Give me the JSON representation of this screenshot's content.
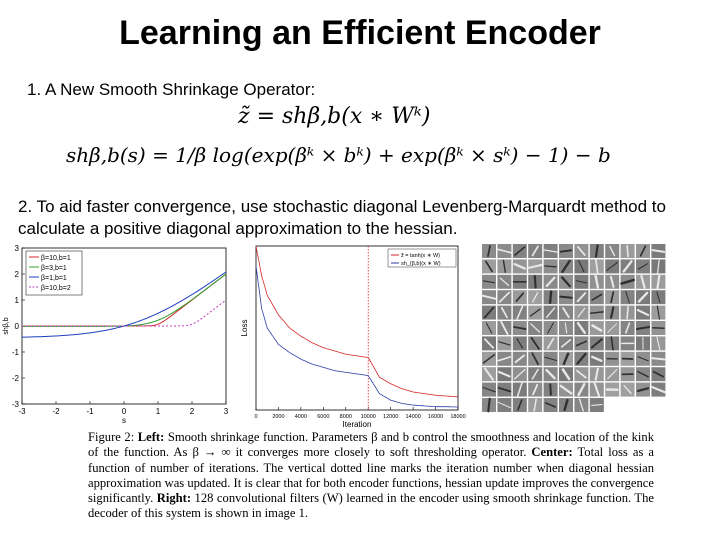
{
  "slide": {
    "title": "Learning an Efficient Encoder",
    "point1": "1. A New Smooth Shrinkage Operator:",
    "equation1": "z̃ = sh_{β,b}(x ∗ W^k)",
    "equation1_display": "z̃ = shβ,b(x ∗ Wᵏ)",
    "equation2": "sh_{β,b}(s) = 1/β log(exp(β^k × b^k) + exp(β^k × s^k) − 1) − b",
    "equation2_display": "shβ,b(s) = 1/β log(exp(βᵏ × bᵏ) + exp(βᵏ × sᵏ) − 1) − b",
    "point2": "2. To aid faster convergence, use stochastic diagonal Levenberg-Marquardt method to calculate a positive diagonal approximation to the hessian."
  },
  "caption": {
    "lead": "Figure 2: ",
    "left_label": "Left:",
    "left_text": " Smooth shrinkage function. Parameters β and b control the smoothness and location of the kink of the function. As β → ∞ it converges more closely to soft thresholding operator. ",
    "center_label": "Center:",
    "center_text": " Total loss as a function of number of iterations. The vertical dotted line marks the iteration number when diagonal hessian approximation was updated. It is clear that for both encoder functions, hessian update improves the convergence significantly. ",
    "right_label": "Right:",
    "right_text": " 128 convolutional filters (W) learned in the encoder using smooth shrinkage function. The decoder of this system is shown in image 1."
  },
  "chart_data": [
    {
      "type": "line",
      "xlabel": "s",
      "ylabel": "sh_{β,b}",
      "xlim": [
        -3,
        3
      ],
      "ylim": [
        -3,
        3
      ],
      "xticks": [
        "-3",
        "-2",
        "-1",
        "0",
        "1",
        "2",
        "3"
      ],
      "yticks": [
        "-3",
        "-2",
        "-1",
        "0",
        "1",
        "2",
        "3"
      ],
      "legend_position": "top-left",
      "series": [
        {
          "name": "β=10,b=1",
          "color": "#d62728",
          "beta": 10,
          "b": 1
        },
        {
          "name": "β=3,b=1",
          "color": "#2ca02c",
          "beta": 3,
          "b": 1
        },
        {
          "name": "β=1,b=1",
          "color": "#1f3fbf",
          "beta": 1,
          "b": 1
        },
        {
          "name": "β=10,b=2",
          "color": "#c040c0",
          "beta": 10,
          "b": 2,
          "dashed": true
        }
      ]
    },
    {
      "type": "line",
      "xlabel": "Iteration",
      "ylabel": "Loss",
      "xlim": [
        0,
        18000
      ],
      "xticks": [
        "0",
        "2000",
        "4000",
        "6000",
        "8000",
        "10000",
        "12000",
        "14000",
        "16000",
        "18000"
      ],
      "legend_position": "top-right",
      "vline_x": 10000,
      "series": [
        {
          "name": "z̃ = tanh(x ∗ W)",
          "color": "#d62728",
          "x": [
            0,
            500,
            1000,
            2000,
            3000,
            4000,
            5000,
            6000,
            7000,
            8000,
            9000,
            10000,
            11000,
            12000,
            13000,
            14000,
            15000,
            16000,
            17000,
            18000
          ],
          "values": [
            100,
            82,
            70,
            58,
            50,
            45,
            41,
            38,
            36,
            34,
            33,
            32,
            20,
            16,
            13,
            11,
            10,
            9,
            8.5,
            8
          ]
        },
        {
          "name": "sh_{β,b}(x ∗ W)",
          "color": "#2b3fa8",
          "x": [
            0,
            500,
            1000,
            2000,
            3000,
            4000,
            5000,
            6000,
            7000,
            8000,
            9000,
            10000,
            11000,
            12000,
            13000,
            14000,
            15000,
            16000,
            17000,
            18000
          ],
          "values": [
            88,
            62,
            50,
            40,
            35,
            31,
            28,
            26,
            24,
            23,
            22,
            21,
            10,
            6,
            4,
            3,
            2.5,
            2,
            2,
            1.8
          ]
        }
      ]
    }
  ],
  "filters": {
    "count": 128,
    "columns": 12
  }
}
